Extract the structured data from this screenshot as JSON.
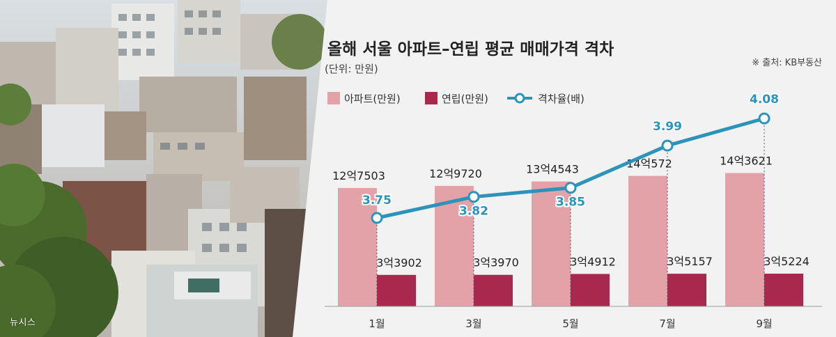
{
  "photo_credit": "뉴시스",
  "source": "※ 출처: KB부동산",
  "colors": {
    "apartment": "#e2a2a8",
    "villa": "#a8294d",
    "ratio_line": "#2c93ba",
    "ratio_label": "#2c93ba",
    "panel_bg": "#f2f2f2"
  },
  "icons": [
    "building-photo"
  ],
  "chart_data": {
    "type": "bar",
    "title": "올해 서울 아파트–연립 평균 매매가격 격차",
    "subtitle": "(단위: 만원)",
    "categories": [
      "1월",
      "3월",
      "5월",
      "7월",
      "9월"
    ],
    "series": [
      {
        "name": "아파트(만원)",
        "type": "bar",
        "values": [
          127503,
          129720,
          134543,
          140572,
          143621
        ],
        "labels": [
          "12억7503",
          "12억9720",
          "13억4543",
          "14억572",
          "14억3621"
        ]
      },
      {
        "name": "연립(만원)",
        "type": "bar",
        "values": [
          33902,
          33970,
          34912,
          35157,
          35224
        ],
        "labels": [
          "3억3902",
          "3억3970",
          "3억4912",
          "3억5157",
          "3억5224"
        ]
      },
      {
        "name": "격차율(배)",
        "type": "line",
        "values": [
          3.75,
          3.82,
          3.85,
          3.99,
          4.08
        ],
        "labels": [
          "3.75",
          "3.82",
          "3.85",
          "3.99",
          "4.08"
        ]
      }
    ],
    "legend_placement": "top-left",
    "grid": false
  }
}
